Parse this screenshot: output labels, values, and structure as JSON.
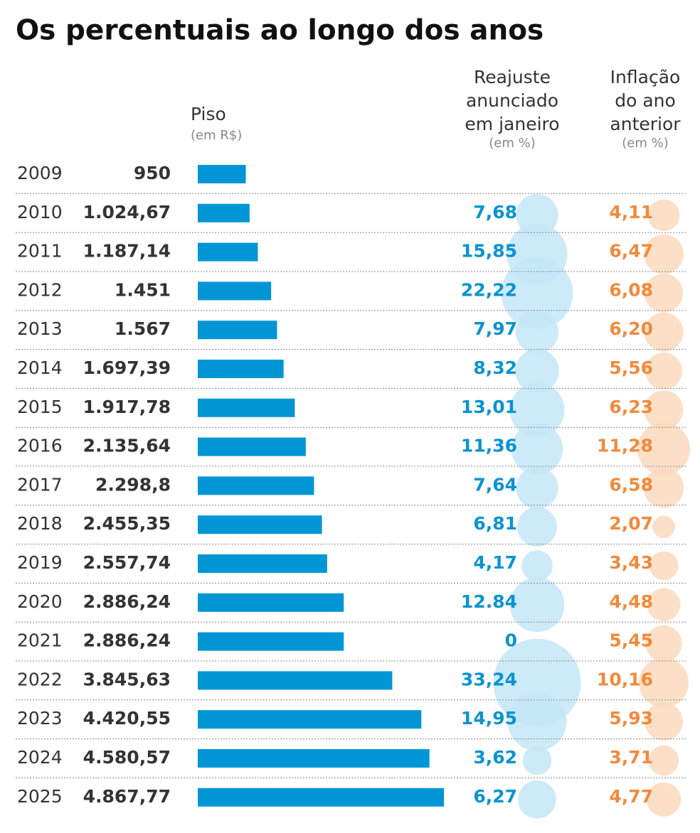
{
  "chart_data": {
    "type": "bar",
    "title": "Os percentuais ao longo dos anos",
    "categories": [
      "2009",
      "2010",
      "2011",
      "2012",
      "2013",
      "2014",
      "2015",
      "2016",
      "2017",
      "2018",
      "2019",
      "2020",
      "2021",
      "2022",
      "2023",
      "2024",
      "2025"
    ],
    "series": [
      {
        "name": [
          "Piso"
        ],
        "unit": "(em R$)",
        "color": "#0096d6",
        "values": [
          950,
          1024.67,
          1187.14,
          1451,
          1567,
          1697.39,
          1917.78,
          2135.64,
          2298.8,
          2455.35,
          2557.74,
          2886.24,
          2886.24,
          3845.63,
          4420.55,
          4580.57,
          4867.77
        ],
        "value_labels": [
          "950",
          "1.024,67",
          "1.187,14",
          "1.451",
          "1.567",
          "1.697,39",
          "1.917,78",
          "2.135,64",
          "2.298,8",
          "2.455,35",
          "2.557,74",
          "2.886,24",
          "2.886,24",
          "3.845,63",
          "4.420,55",
          "4.580,57",
          "4.867,77"
        ]
      },
      {
        "name": [
          "Reajuste",
          "anunciado",
          "em janeiro"
        ],
        "unit": "(em %)",
        "color": "#0a93d1",
        "bubble_color": "#c4e6f7",
        "values": [
          null,
          7.68,
          15.85,
          22.22,
          7.97,
          8.32,
          13.01,
          11.36,
          7.64,
          6.81,
          4.17,
          12.84,
          0,
          33.24,
          14.95,
          3.62,
          6.27
        ],
        "value_labels": [
          null,
          "7,68",
          "15,85",
          "22,22",
          "7,97",
          "8,32",
          "13,01",
          "11,36",
          "7,64",
          "6,81",
          "4,17",
          "12.84",
          "0",
          "33,24",
          "14,95",
          "3,62",
          "6,27"
        ]
      },
      {
        "name": [
          "Inflação",
          "do ano",
          "anterior"
        ],
        "unit": "(em %)",
        "color": "#f08a3c",
        "bubble_color": "#fbd9bd",
        "values": [
          null,
          4.11,
          6.47,
          6.08,
          6.2,
          5.56,
          6.23,
          11.28,
          6.58,
          2.07,
          3.43,
          4.48,
          5.45,
          10.16,
          5.93,
          3.71,
          4.77
        ],
        "value_labels": [
          null,
          "4,11",
          "6,47",
          "6,08",
          "6,20",
          "5,56",
          "6,23",
          "11,28",
          "6,58",
          "2,07",
          "3,43",
          "4,48",
          "5,45",
          "10,16",
          "5,93",
          "3,71",
          "4,77"
        ]
      }
    ]
  }
}
